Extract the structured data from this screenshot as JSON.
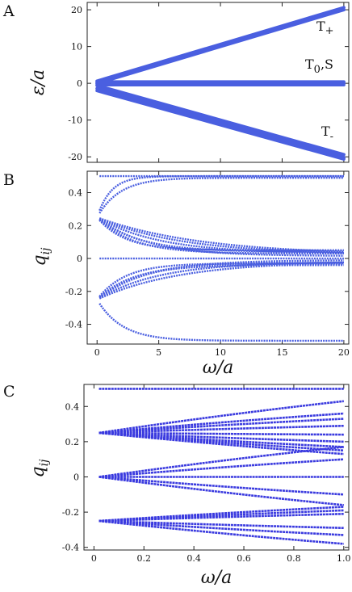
{
  "figure": {
    "panels": [
      "A",
      "B",
      "C"
    ]
  },
  "chart_data": [
    {
      "panel": "A",
      "type": "line",
      "title": "",
      "xlabel": "",
      "ylabel": "ε/a",
      "xlim": [
        -0.8,
        20.4
      ],
      "ylim": [
        -21.5,
        22
      ],
      "xticks": [
        0,
        5,
        10,
        15,
        20
      ],
      "xtick_labels": [
        "",
        "",
        "",
        "",
        ""
      ],
      "yticks": [
        -20,
        -10,
        0,
        10,
        20
      ],
      "ytick_labels": [
        "-20",
        "-10",
        "0",
        "10",
        "20"
      ],
      "grid": false,
      "color": "#4a5fe0",
      "annotations": [
        {
          "text": "T+",
          "main": "T",
          "sub": "+"
        },
        {
          "text": "T0,S",
          "main": "T",
          "sub": "0",
          "tail": ",S"
        },
        {
          "text": "T-",
          "main": "T",
          "sub": "-"
        }
      ],
      "series": [
        {
          "x": [
            0,
            20
          ],
          "y": [
            0.6,
            20.6
          ]
        },
        {
          "x": [
            0,
            20
          ],
          "y": [
            0.0,
            20.0
          ]
        },
        {
          "x": [
            0,
            20
          ],
          "y": [
            0.4,
            0.4
          ]
        },
        {
          "x": [
            0,
            20
          ],
          "y": [
            0.0,
            0.0
          ]
        },
        {
          "x": [
            0,
            20
          ],
          "y": [
            -0.4,
            -0.4
          ]
        },
        {
          "x": [
            0,
            20
          ],
          "y": [
            -0.6,
            -19.4
          ]
        },
        {
          "x": [
            0,
            20
          ],
          "y": [
            -1.4,
            -20.2
          ]
        },
        {
          "x": [
            0,
            20
          ],
          "y": [
            -2.0,
            -20.6
          ]
        }
      ]
    },
    {
      "panel": "B",
      "type": "scatter",
      "title": "",
      "xlabel": "ω/a",
      "ylabel": "qij",
      "ylabel_main": "q",
      "ylabel_sub": "ij",
      "xlim": [
        -0.8,
        20.4
      ],
      "ylim": [
        -0.52,
        0.53
      ],
      "xticks": [
        0,
        5,
        10,
        15,
        20
      ],
      "xtick_labels": [
        "0",
        "5",
        "10",
        "15",
        "20"
      ],
      "yticks": [
        -0.4,
        -0.2,
        0,
        0.2,
        0.4
      ],
      "ytick_labels": [
        "-0.4",
        "-0.2",
        "0",
        "0.2",
        "0.4"
      ],
      "grid": false,
      "color": "#4a5fe0",
      "curve_shape": "saturating",
      "curves": [
        {
          "start": 0.25,
          "end": 0.5,
          "rate": 0.9
        },
        {
          "start": 0.25,
          "end": 0.49,
          "rate": 0.55
        },
        {
          "start": 0.25,
          "end": 0.05,
          "rate": 0.45
        },
        {
          "start": 0.25,
          "end": 0.04,
          "rate": 0.3
        },
        {
          "start": 0.25,
          "end": 0.03,
          "rate": 0.2
        },
        {
          "start": 0.25,
          "end": 0.025,
          "rate": 0.15
        },
        {
          "start": 0.25,
          "end": 0.02,
          "rate": 0.12
        },
        {
          "start": 0.25,
          "end": 0.03,
          "rate": 0.35
        },
        {
          "start": 0.25,
          "end": 0.015,
          "rate": 0.25
        },
        {
          "start": 0.5,
          "end": 0.5,
          "rate": 1.0
        },
        {
          "start": 0.0,
          "end": 0.0,
          "rate": 1.0
        },
        {
          "start": -0.25,
          "end": -0.5,
          "rate": 0.5
        },
        {
          "start": -0.25,
          "end": -0.03,
          "rate": 0.45
        },
        {
          "start": -0.25,
          "end": -0.025,
          "rate": 0.3
        },
        {
          "start": -0.25,
          "end": -0.02,
          "rate": 0.2
        },
        {
          "start": -0.25,
          "end": -0.015,
          "rate": 0.15
        },
        {
          "start": -0.25,
          "end": -0.04,
          "rate": 0.35
        },
        {
          "start": -0.25,
          "end": -0.01,
          "rate": 0.25
        }
      ]
    },
    {
      "panel": "C",
      "type": "line",
      "title": "",
      "xlabel": "ω/a",
      "ylabel": "qij",
      "ylabel_main": "q",
      "ylabel_sub": "ij",
      "xlim": [
        -0.04,
        1.02
      ],
      "ylim": [
        -0.415,
        0.525
      ],
      "xticks": [
        0,
        0.2,
        0.4,
        0.6,
        0.8,
        1.0
      ],
      "xtick_labels": [
        "0",
        "0.2",
        "0.4",
        "0.6",
        "0.8",
        "1.0"
      ],
      "yticks": [
        -0.4,
        -0.2,
        0,
        0.2,
        0.4
      ],
      "ytick_labels": [
        "-0.4",
        "-0.2",
        "0",
        "0.2",
        "0.4"
      ],
      "grid": false,
      "color": "#3a3adf",
      "x_range": [
        0.02,
        1.0
      ],
      "series": [
        {
          "x0": 0.02,
          "y0": 0.5,
          "x1": 1.0,
          "y1": 0.5
        },
        {
          "x0": 0.02,
          "y0": 0.25,
          "x1": 1.0,
          "y1": 0.43
        },
        {
          "x0": 0.02,
          "y0": 0.25,
          "x1": 1.0,
          "y1": 0.36
        },
        {
          "x0": 0.02,
          "y0": 0.25,
          "x1": 1.0,
          "y1": 0.33
        },
        {
          "x0": 0.02,
          "y0": 0.25,
          "x1": 1.0,
          "y1": 0.29
        },
        {
          "x0": 0.02,
          "y0": 0.25,
          "x1": 1.0,
          "y1": 0.24
        },
        {
          "x0": 0.02,
          "y0": 0.25,
          "x1": 1.0,
          "y1": 0.2
        },
        {
          "x0": 0.02,
          "y0": 0.25,
          "x1": 1.0,
          "y1": 0.17
        },
        {
          "x0": 0.02,
          "y0": 0.25,
          "x1": 1.0,
          "y1": 0.15
        },
        {
          "x0": 0.02,
          "y0": 0.25,
          "x1": 1.0,
          "y1": 0.13
        },
        {
          "x0": 0.02,
          "y0": 0.0,
          "x1": 1.0,
          "y1": 0.17
        },
        {
          "x0": 0.02,
          "y0": 0.0,
          "x1": 1.0,
          "y1": 0.1
        },
        {
          "x0": 0.02,
          "y0": 0.0,
          "x1": 1.0,
          "y1": 0.0
        },
        {
          "x0": 0.02,
          "y0": 0.0,
          "x1": 1.0,
          "y1": -0.1
        },
        {
          "x0": 0.02,
          "y0": 0.0,
          "x1": 1.0,
          "y1": -0.16
        },
        {
          "x0": 0.02,
          "y0": -0.25,
          "x1": 1.0,
          "y1": -0.17
        },
        {
          "x0": 0.02,
          "y0": -0.25,
          "x1": 1.0,
          "y1": -0.19
        },
        {
          "x0": 0.02,
          "y0": -0.25,
          "x1": 1.0,
          "y1": -0.21
        },
        {
          "x0": 0.02,
          "y0": -0.25,
          "x1": 1.0,
          "y1": -0.29
        },
        {
          "x0": 0.02,
          "y0": -0.25,
          "x1": 1.0,
          "y1": -0.33
        },
        {
          "x0": 0.02,
          "y0": -0.25,
          "x1": 1.0,
          "y1": -0.38
        }
      ]
    }
  ]
}
